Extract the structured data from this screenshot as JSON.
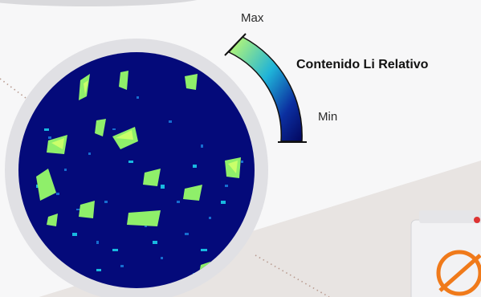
{
  "legend": {
    "title": "Contenido Li Relativo",
    "max_label": "Max",
    "min_label": "Min"
  },
  "colors": {
    "background_upper": "#f7f7f8",
    "background_lower": "#e8e4e2",
    "ring": "#e0e0e4",
    "map_background": "#040a7a",
    "gradient_high": "#c9ff6a",
    "gradient_mid": "#1fb3d8",
    "gradient_low": "#03065e",
    "device_accent": "#f07a1a"
  },
  "icons": {
    "device": "measurement-device-icon"
  }
}
